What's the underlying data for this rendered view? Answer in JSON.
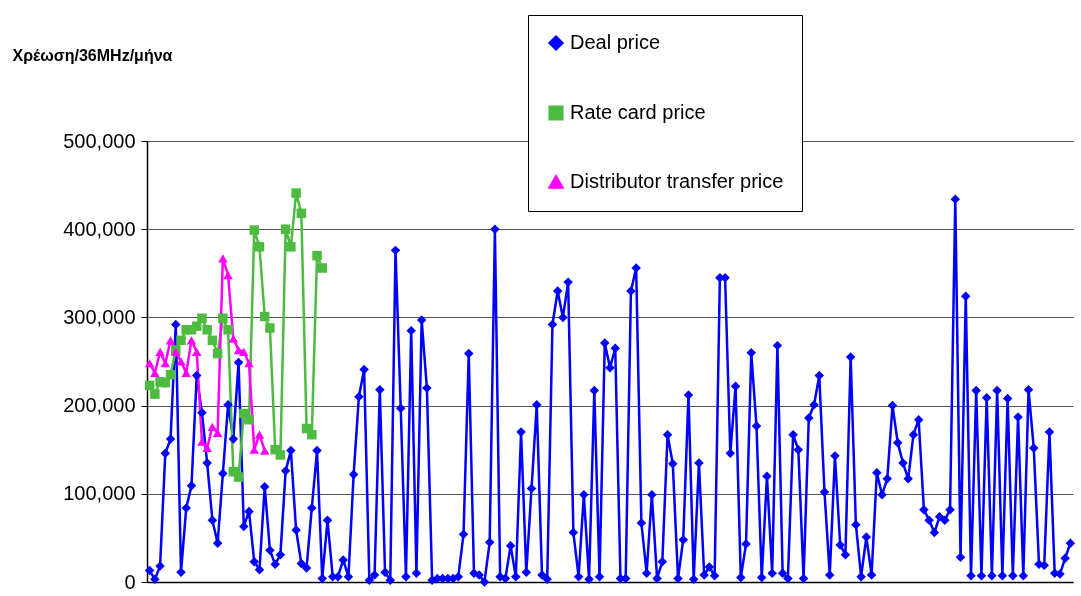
{
  "chart_data": {
    "type": "line",
    "ylabel": "Χρέωση/36MHz/μήνα",
    "categories": [
      null,
      null,
      null,
      null,
      null,
      null,
      null,
      null,
      null,
      null,
      null,
      null,
      null,
      null,
      null,
      null,
      null,
      null,
      null,
      null,
      null,
      null,
      null,
      null,
      null,
      null,
      null,
      null,
      null,
      null,
      null,
      null,
      null,
      null,
      null,
      null,
      null,
      null,
      null,
      null,
      null,
      null,
      null,
      null,
      null,
      null,
      null,
      null,
      null,
      null,
      null,
      null,
      null,
      null,
      null,
      null,
      null,
      null,
      null,
      null,
      null,
      null,
      null,
      null,
      null,
      null,
      null,
      null,
      null,
      null,
      null,
      null,
      null,
      null,
      null,
      null,
      null,
      null,
      null,
      null,
      null,
      null,
      null,
      null,
      null,
      null,
      null,
      null,
      null,
      null,
      null,
      null,
      null,
      null,
      null,
      null,
      null,
      null,
      null,
      null,
      null,
      null,
      null,
      null,
      null,
      null,
      null,
      null,
      null,
      null,
      null,
      null,
      null,
      null,
      null,
      null,
      null,
      null,
      null,
      null,
      null,
      null,
      null,
      null,
      null,
      null,
      null,
      null,
      null,
      null,
      null,
      null,
      null,
      null,
      null,
      null,
      null,
      null,
      null,
      null,
      null,
      null,
      null,
      null,
      null,
      null,
      null,
      null,
      null,
      null,
      null,
      null,
      null,
      null,
      null,
      null,
      null,
      null,
      null,
      null,
      null,
      null,
      null,
      null,
      null,
      null,
      null,
      null,
      null,
      null,
      null,
      null,
      null,
      null,
      null,
      null,
      null
    ],
    "series": [
      {
        "name": "Deal price",
        "color": "#0000ff",
        "marker": "diamond",
        "values": [
          13000,
          3000,
          18000,
          146000,
          162000,
          292000,
          11000,
          84000,
          109000,
          234000,
          192000,
          135000,
          70000,
          44000,
          123000,
          201000,
          162000,
          249000,
          63000,
          80000,
          23000,
          14000,
          108000,
          36000,
          20000,
          31000,
          126000,
          149000,
          59000,
          21000,
          16000,
          84000,
          149000,
          4000,
          70000,
          6000,
          6000,
          25000,
          6000,
          122000,
          210000,
          241000,
          2000,
          8000,
          218000,
          11000,
          2000,
          376000,
          197000,
          6000,
          285000,
          10000,
          297000,
          220000,
          2000,
          4000,
          4000,
          4000,
          4000,
          6000,
          54000,
          259000,
          10000,
          8000,
          0,
          45000,
          400000,
          6000,
          4000,
          41000,
          6000,
          170000,
          11000,
          106000,
          201000,
          8000,
          3000,
          292000,
          330000,
          300000,
          340000,
          56000,
          6000,
          99000,
          3000,
          217000,
          6000,
          271000,
          243000,
          265000,
          4000,
          4000,
          330000,
          356000,
          67000,
          10000,
          99000,
          4000,
          23000,
          167000,
          134000,
          4000,
          48000,
          212000,
          3000,
          135000,
          8000,
          17000,
          7000,
          345000,
          345000,
          146000,
          222000,
          5000,
          43000,
          260000,
          177000,
          5000,
          120000,
          10000,
          268000,
          10000,
          4000,
          167000,
          150000,
          4000,
          186000,
          201000,
          234000,
          102000,
          8000,
          143000,
          42000,
          31000,
          255000,
          65000,
          6000,
          51000,
          8000,
          124000,
          99000,
          117000,
          200000,
          158000,
          135000,
          117000,
          167000,
          184000,
          82000,
          70000,
          56000,
          74000,
          70000,
          82000,
          434000,
          28000,
          324000,
          7000,
          217000,
          7000,
          209000,
          7000,
          217000,
          7000,
          208000,
          7000,
          187000,
          7000,
          218000,
          152000,
          20000,
          19000,
          170000,
          10000,
          9000,
          27000,
          44000
        ]
      },
      {
        "name": "Rate card price",
        "color": "#4cbb3f",
        "marker": "square",
        "values": [
          223000,
          213000,
          227000,
          226000,
          235000,
          263000,
          274000,
          286000,
          286000,
          290000,
          299000,
          286000,
          274000,
          259000,
          299000,
          286000,
          125000,
          119000,
          191000,
          184000,
          399000,
          380000,
          301000,
          288000,
          150000,
          144000,
          400000,
          380000,
          441000,
          418000,
          174000,
          167000,
          370000,
          356000,
          null,
          null,
          null,
          null,
          null,
          null,
          null,
          null,
          null,
          null,
          null,
          null,
          null,
          null,
          null,
          null,
          null,
          null,
          null,
          null,
          null,
          null,
          null,
          null,
          null,
          null,
          null,
          null,
          null,
          null,
          null,
          null,
          null,
          null,
          null,
          null,
          null,
          null,
          null,
          null,
          null,
          null,
          null,
          null,
          null,
          null,
          null,
          null,
          null,
          null,
          null,
          null,
          null,
          null,
          null,
          null,
          null,
          null,
          null,
          null,
          null,
          null,
          null,
          null,
          null,
          null,
          null,
          null,
          null,
          null,
          null,
          null,
          null,
          null,
          null,
          null,
          null,
          null,
          null,
          null,
          null,
          null,
          null,
          null,
          null,
          null,
          null,
          null,
          null,
          null,
          null,
          null,
          null,
          null,
          null,
          null,
          null,
          null,
          null,
          null,
          null,
          null,
          null,
          null,
          null,
          null,
          null,
          null,
          null,
          null,
          null,
          null,
          null,
          null,
          null,
          null,
          null,
          null,
          null,
          null,
          null,
          null,
          null,
          null,
          null,
          null,
          null,
          null,
          null,
          null,
          null,
          null,
          null,
          null,
          null,
          null,
          null,
          null,
          null,
          null,
          null,
          null,
          null
        ]
      },
      {
        "name": "Distributor transfer price",
        "color": "#ff00ff",
        "marker": "triangle",
        "values": [
          248000,
          237000,
          261000,
          248000,
          274000,
          261000,
          250000,
          237000,
          274000,
          261000,
          159000,
          152000,
          176000,
          169000,
          367000,
          348000,
          276000,
          263000,
          261000,
          248000,
          150000,
          167000,
          149000,
          null,
          null,
          null,
          null,
          null,
          null,
          null,
          null,
          null,
          null,
          null,
          null,
          null,
          null,
          null,
          null,
          null,
          null,
          null,
          null,
          null,
          null,
          null,
          null,
          null,
          null,
          null,
          null,
          null,
          null,
          null,
          null,
          null,
          null,
          null,
          null,
          null,
          null,
          null,
          null,
          null,
          null,
          null,
          null,
          null,
          null,
          null,
          null,
          null,
          null,
          null,
          null,
          null,
          null,
          null,
          null,
          null,
          null,
          null,
          null,
          null,
          null,
          null,
          null,
          null,
          null,
          null,
          null,
          null,
          null,
          null,
          null,
          null,
          null,
          null,
          null,
          null,
          null,
          null,
          null,
          null,
          null,
          null,
          null,
          null,
          null,
          null,
          null,
          null,
          null,
          null,
          null,
          null,
          null,
          null,
          null,
          null,
          null,
          null,
          null,
          null,
          null,
          null,
          null,
          null,
          null,
          null,
          null,
          null,
          null,
          null,
          null,
          null,
          null,
          null,
          null,
          null,
          null,
          null,
          null,
          null,
          null,
          null,
          null,
          null,
          null,
          null,
          null,
          null,
          null,
          null,
          null,
          null,
          null,
          null,
          null,
          null,
          null,
          null,
          null,
          null,
          null,
          null,
          null,
          null,
          null,
          null,
          null,
          null,
          null,
          null,
          null,
          null,
          null
        ]
      }
    ],
    "ylim": [
      0,
      500000
    ],
    "yticks": [
      0,
      {
        "value": 100000,
        "label": "100,000"
      },
      {
        "value": 200000,
        "label": "200,000"
      },
      {
        "value": 300000,
        "label": "300,000"
      },
      {
        "value": 400000,
        "label": "400,000"
      },
      {
        "value": 500000,
        "label": "500,000"
      }
    ],
    "grid": "y",
    "legend": "top right",
    "line_style": "solid"
  }
}
